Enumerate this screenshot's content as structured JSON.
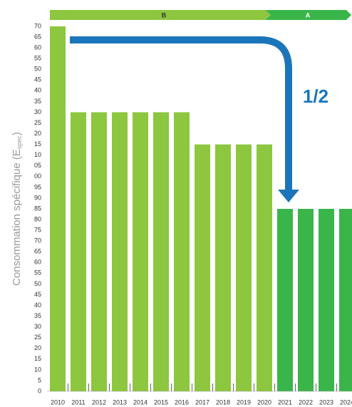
{
  "chart_data": {
    "type": "bar",
    "y_label": "Consommation spécifique (E",
    "y_label_sub": "spec",
    "y_label_end": ")",
    "annotation": "1/2",
    "bands": [
      "B",
      "A"
    ],
    "band_colors": [
      "#8dc63f",
      "#3ab54a"
    ],
    "categories": [
      "2010",
      "2011",
      "2012",
      "2013",
      "2014",
      "2015",
      "2016",
      "2017",
      "2018",
      "2019",
      "2020",
      "2021",
      "2022",
      "2023",
      "2024"
    ],
    "values": [
      170,
      130,
      130,
      130,
      130,
      130,
      130,
      115,
      115,
      115,
      115,
      85,
      85,
      85,
      85
    ],
    "colors": [
      "#8dc63f",
      "#8dc63f",
      "#8dc63f",
      "#8dc63f",
      "#8dc63f",
      "#8dc63f",
      "#8dc63f",
      "#8dc63f",
      "#8dc63f",
      "#8dc63f",
      "#8dc63f",
      "#3ab54a",
      "#3ab54a",
      "#3ab54a",
      "#3ab54a"
    ],
    "ylim": [
      0,
      170
    ],
    "yticks": [
      0,
      5,
      10,
      15,
      20,
      25,
      30,
      35,
      40,
      45,
      50,
      55,
      60,
      65,
      70,
      75,
      80,
      85,
      90,
      95,
      {
        "value": 100,
        "label": "00"
      },
      {
        "value": 105,
        "label": "05"
      },
      {
        "value": 110,
        "label": "10"
      },
      {
        "value": 115,
        "label": "15"
      },
      {
        "value": 120,
        "label": "20"
      },
      {
        "value": 125,
        "label": "25"
      },
      {
        "value": 130,
        "label": "30"
      },
      {
        "value": 135,
        "label": "35"
      },
      {
        "value": 140,
        "label": "40"
      },
      {
        "value": 145,
        "label": "45"
      },
      {
        "value": 150,
        "label": "50"
      },
      {
        "value": 155,
        "label": "55"
      },
      {
        "value": 160,
        "label": "60"
      },
      {
        "value": 165,
        "label": "65"
      },
      {
        "value": 170,
        "label": "70"
      }
    ]
  }
}
